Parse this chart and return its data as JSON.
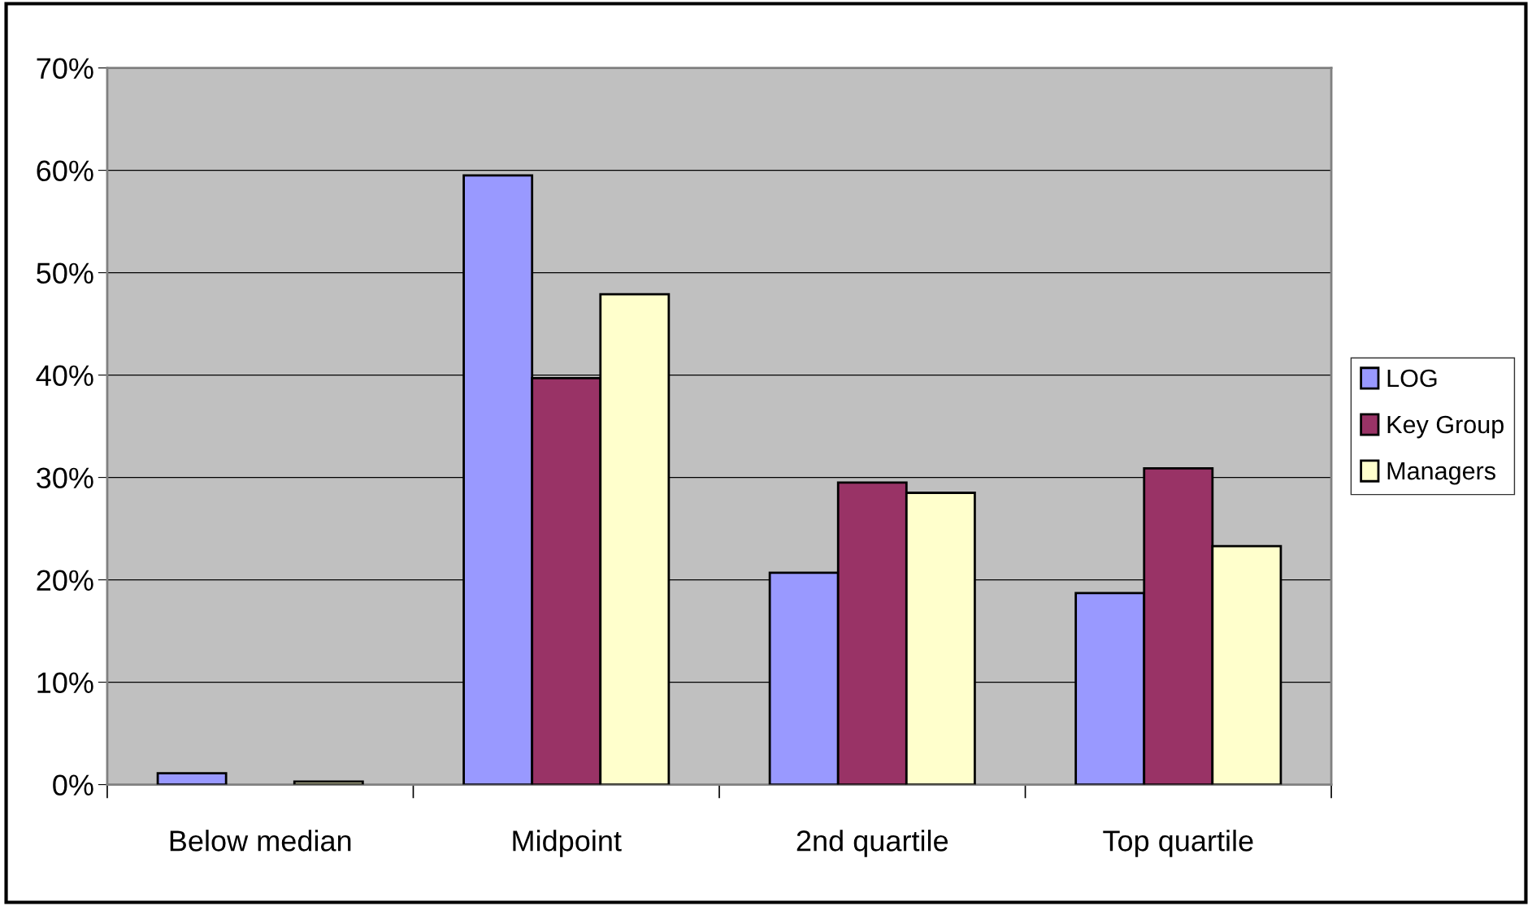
{
  "chart_data": {
    "type": "bar",
    "categories": [
      "Below median",
      "Midpoint",
      "2nd quartile",
      "Top quartile"
    ],
    "series": [
      {
        "name": "LOG",
        "color": "#9999ff",
        "values": [
          1.1,
          59.5,
          20.7,
          18.7
        ]
      },
      {
        "name": "Key Group",
        "color": "#993366",
        "values": [
          null,
          39.7,
          29.5,
          30.9
        ]
      },
      {
        "name": "Managers",
        "color": "#ffffcc",
        "values": [
          0.3,
          47.9,
          28.5,
          23.3
        ]
      }
    ],
    "ylim": [
      0,
      70
    ],
    "yticks": [
      {
        "value": 0,
        "label": "0%"
      },
      {
        "value": 10,
        "label": "10%"
      },
      {
        "value": 20,
        "label": "20%"
      },
      {
        "value": 30,
        "label": "30%"
      },
      {
        "value": 40,
        "label": "40%"
      },
      {
        "value": 50,
        "label": "50%"
      },
      {
        "value": 60,
        "label": "60%"
      },
      {
        "value": 70,
        "label": "70%"
      }
    ],
    "grid": "y",
    "legend": "right"
  }
}
